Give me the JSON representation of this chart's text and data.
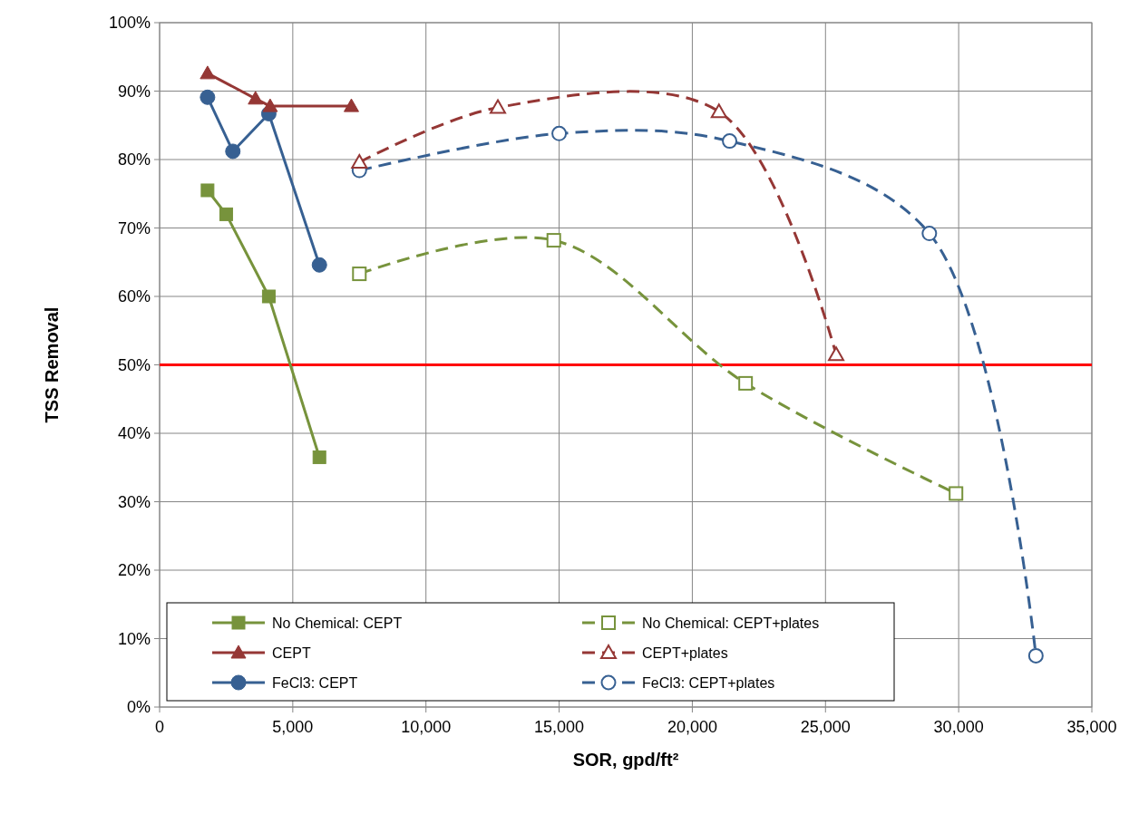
{
  "chart_data": {
    "type": "line",
    "xlabel": "SOR, gpd/ft²",
    "ylabel": "TSS Removal",
    "xlim": [
      0,
      35000
    ],
    "ylim": [
      0,
      100
    ],
    "xticks": [
      0,
      {
        "value": 5000,
        "label": "5,000"
      },
      {
        "value": 10000,
        "label": "10,000"
      },
      {
        "value": 15000,
        "label": "15,000"
      },
      {
        "value": 20000,
        "label": "20,000"
      },
      {
        "value": 25000,
        "label": "25,000"
      },
      {
        "value": 30000,
        "label": "30,000"
      },
      {
        "value": 35000,
        "label": "35,000"
      }
    ],
    "yticks": [
      {
        "value": 0,
        "label": "0%"
      },
      {
        "value": 10,
        "label": "10%"
      },
      {
        "value": 20,
        "label": "20%"
      },
      {
        "value": 30,
        "label": "30%"
      },
      {
        "value": 40,
        "label": "40%"
      },
      {
        "value": 50,
        "label": "50%"
      },
      {
        "value": 60,
        "label": "60%"
      },
      {
        "value": 70,
        "label": "70%"
      },
      {
        "value": 80,
        "label": "80%"
      },
      {
        "value": 90,
        "label": "90%"
      },
      {
        "value": 100,
        "label": "100%"
      }
    ],
    "grid": true,
    "legend": "bottom",
    "ref_lines": [
      {
        "axis": "y",
        "value": 50,
        "color": "#ff0000"
      }
    ],
    "series": [
      {
        "name": "No Chemical: CEPT",
        "color": "#77933c",
        "marker": "square",
        "line_style": "solid",
        "x": [
          1800,
          2500,
          4100,
          6000
        ],
        "values": [
          75.5,
          72,
          60,
          36.5
        ]
      },
      {
        "name": "CEPT",
        "color": "#953735",
        "marker": "triangle",
        "line_style": "solid",
        "x": [
          1800,
          3600,
          4150,
          7200
        ],
        "values": [
          92.6,
          88.9,
          87.8,
          87.8
        ]
      },
      {
        "name": "FeCl3: CEPT",
        "color": "#376092",
        "marker": "circle",
        "line_style": "solid",
        "x": [
          1800,
          2750,
          4100,
          6000
        ],
        "values": [
          89.1,
          81.2,
          86.7,
          64.6
        ]
      },
      {
        "name": "No Chemical: CEPT+plates",
        "color": "#77933c",
        "marker": "square",
        "line_style": "dashed",
        "x": [
          7500,
          14800,
          22000,
          29900
        ],
        "values": [
          63.3,
          68.2,
          47.3,
          31.2
        ]
      },
      {
        "name": "CEPT+plates",
        "color": "#953735",
        "marker": "triangle",
        "line_style": "dashed",
        "x": [
          7500,
          12700,
          21000,
          25400
        ],
        "values": [
          79.6,
          87.6,
          87,
          51.5
        ]
      },
      {
        "name": "FeCl3: CEPT+plates",
        "color": "#376092",
        "marker": "circle",
        "line_style": "dashed",
        "x": [
          7500,
          15000,
          21400,
          28900,
          32900
        ],
        "values": [
          78.4,
          83.8,
          82.7,
          69.2,
          7.5
        ]
      }
    ]
  }
}
